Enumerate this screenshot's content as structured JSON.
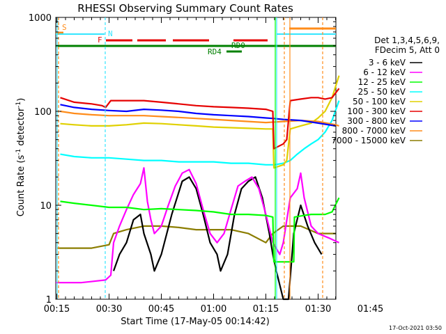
{
  "chart_data": {
    "type": "line",
    "title": "RHESSI Observing Summary Count Rates",
    "xlabel": "Start Time (17-May-05 00:14:42)",
    "ylabel": "Count Rate (s⁻¹ detector⁻¹)",
    "ylabel_parts": [
      "Count Rate (s",
      "-1",
      " detector",
      "-1",
      ")"
    ],
    "y_scale": "log",
    "ylim": [
      1,
      1000
    ],
    "xlim": [
      14.7,
      97.0
    ],
    "x_ticks": [
      {
        "t": 15,
        "label": "00:15"
      },
      {
        "t": 30,
        "label": "00:30"
      },
      {
        "t": 45,
        "label": "00:45"
      },
      {
        "t": 60,
        "label": "01:00"
      },
      {
        "t": 75,
        "label": "01:15"
      },
      {
        "t": 90,
        "label": "01:30"
      },
      {
        "t": 105,
        "label": "01:45"
      }
    ],
    "y_ticks": [
      {
        "v": 1,
        "label": "1"
      },
      {
        "v": 10,
        "label": "10"
      },
      {
        "v": 100,
        "label": "100"
      },
      {
        "v": 1000,
        "label": "1000"
      }
    ],
    "legend_header": [
      "Det 1,3,4,5,6,9,",
      "FDecim 5, Att 0"
    ],
    "legend_placement": "right",
    "timestamp": "17-Oct-2021 03:50",
    "flags": [
      {
        "label": "S",
        "color": "#ff8c1a"
      },
      {
        "label": "N",
        "color": "#33e6ff"
      },
      {
        "label": "F",
        "color": "#e60000"
      },
      {
        "label": "RD0",
        "color": "#008000"
      },
      {
        "label": "RD4",
        "color": "#008000"
      }
    ],
    "series": [
      {
        "name": "3 - 6 keV",
        "color": "#000000",
        "points": [
          [
            31.3,
            2
          ],
          [
            33,
            3
          ],
          [
            35,
            4
          ],
          [
            37,
            7
          ],
          [
            39,
            8
          ],
          [
            40,
            5
          ],
          [
            42,
            3
          ],
          [
            43,
            2
          ],
          [
            45,
            3
          ],
          [
            48,
            8
          ],
          [
            51,
            18
          ],
          [
            53,
            20
          ],
          [
            55,
            15
          ],
          [
            57,
            8
          ],
          [
            59,
            4
          ],
          [
            61,
            3
          ],
          [
            62,
            2
          ],
          [
            64,
            3
          ],
          [
            66,
            8
          ],
          [
            68,
            15
          ],
          [
            70,
            18
          ],
          [
            72,
            20
          ],
          [
            74,
            12
          ],
          [
            76,
            5
          ],
          [
            77,
            3
          ],
          [
            78,
            2
          ],
          [
            80,
            1
          ],
          [
            81.5,
            1
          ],
          [
            83,
            5
          ],
          [
            85,
            10
          ],
          [
            87,
            6
          ],
          [
            89,
            4
          ],
          [
            91,
            3
          ]
        ]
      },
      {
        "name": "6 - 12 keV",
        "color": "#ff00ff",
        "points": [
          [
            14.7,
            1.5
          ],
          [
            22,
            1.5
          ],
          [
            29,
            1.6
          ],
          [
            30.5,
            1.8
          ],
          [
            31.3,
            4
          ],
          [
            33,
            6
          ],
          [
            35,
            9
          ],
          [
            37,
            13
          ],
          [
            39,
            17
          ],
          [
            40,
            25
          ],
          [
            41,
            11
          ],
          [
            42,
            7
          ],
          [
            43,
            5
          ],
          [
            45,
            6
          ],
          [
            47,
            10
          ],
          [
            49,
            16
          ],
          [
            51,
            22
          ],
          [
            53,
            24
          ],
          [
            55,
            17
          ],
          [
            57,
            9
          ],
          [
            59,
            5
          ],
          [
            61,
            4
          ],
          [
            63,
            5
          ],
          [
            65,
            9
          ],
          [
            67,
            16
          ],
          [
            69,
            18
          ],
          [
            71,
            20
          ],
          [
            73,
            15
          ],
          [
            75,
            8
          ],
          [
            77,
            4
          ],
          [
            79,
            3
          ],
          [
            80,
            4
          ],
          [
            82,
            12
          ],
          [
            84,
            15
          ],
          [
            85,
            22
          ],
          [
            86,
            12
          ],
          [
            88,
            6
          ],
          [
            90,
            5
          ],
          [
            93,
            4.5
          ],
          [
            96,
            4
          ]
        ]
      },
      {
        "name": "12 - 25 keV",
        "color": "#00ff00",
        "points": [
          [
            16,
            11
          ],
          [
            20,
            10.5
          ],
          [
            25,
            10
          ],
          [
            30,
            9.5
          ],
          [
            35,
            9.5
          ],
          [
            40,
            9
          ],
          [
            45,
            9.2
          ],
          [
            50,
            9
          ],
          [
            55,
            8.8
          ],
          [
            60,
            8.5
          ],
          [
            65,
            8
          ],
          [
            70,
            8
          ],
          [
            75,
            7.8
          ],
          [
            77,
            7.5
          ],
          [
            77.3,
            2.5
          ],
          [
            83,
            2.5
          ],
          [
            83.2,
            7.5
          ],
          [
            86,
            7.8
          ],
          [
            88,
            8
          ],
          [
            92,
            8
          ],
          [
            94,
            8.5
          ],
          [
            96,
            12
          ]
        ]
      },
      {
        "name": "25 - 50 keV",
        "color": "#00ffff",
        "points": [
          [
            16,
            35
          ],
          [
            20,
            33
          ],
          [
            25,
            32
          ],
          [
            30,
            32
          ],
          [
            35,
            31
          ],
          [
            40,
            30
          ],
          [
            45,
            30
          ],
          [
            50,
            29
          ],
          [
            55,
            29
          ],
          [
            60,
            29
          ],
          [
            65,
            28
          ],
          [
            70,
            28
          ],
          [
            75,
            27
          ],
          [
            77,
            27
          ],
          [
            77.5,
            27
          ],
          [
            80,
            28
          ],
          [
            82,
            30
          ],
          [
            84,
            35
          ],
          [
            86,
            40
          ],
          [
            88,
            45
          ],
          [
            90,
            50
          ],
          [
            92,
            60
          ],
          [
            94,
            80
          ],
          [
            96,
            130
          ]
        ]
      },
      {
        "name": "50 - 100 keV",
        "color": "#e0d000",
        "points": [
          [
            16,
            74
          ],
          [
            20,
            72
          ],
          [
            25,
            70
          ],
          [
            30,
            70
          ],
          [
            35,
            72
          ],
          [
            40,
            75
          ],
          [
            45,
            74
          ],
          [
            50,
            72
          ],
          [
            55,
            70
          ],
          [
            60,
            68
          ],
          [
            65,
            67
          ],
          [
            70,
            66
          ],
          [
            75,
            65
          ],
          [
            77,
            65
          ],
          [
            77.3,
            25
          ],
          [
            80,
            27
          ],
          [
            81,
            30
          ],
          [
            82,
            65
          ],
          [
            85,
            70
          ],
          [
            88,
            75
          ],
          [
            90,
            85
          ],
          [
            92,
            100
          ],
          [
            94,
            140
          ],
          [
            96,
            240
          ]
        ]
      },
      {
        "name": "100 - 300 keV",
        "color": "#e60000",
        "points": [
          [
            16,
            140
          ],
          [
            20,
            125
          ],
          [
            25,
            120
          ],
          [
            28,
            115
          ],
          [
            29,
            110
          ],
          [
            30.5,
            130
          ],
          [
            35,
            130
          ],
          [
            40,
            130
          ],
          [
            45,
            125
          ],
          [
            50,
            120
          ],
          [
            55,
            115
          ],
          [
            60,
            112
          ],
          [
            65,
            110
          ],
          [
            70,
            108
          ],
          [
            75,
            105
          ],
          [
            77,
            100
          ],
          [
            77.3,
            40
          ],
          [
            80,
            45
          ],
          [
            81,
            50
          ],
          [
            82,
            130
          ],
          [
            85,
            135
          ],
          [
            88,
            140
          ],
          [
            90,
            140
          ],
          [
            92,
            135
          ],
          [
            94,
            140
          ],
          [
            96,
            175
          ]
        ]
      },
      {
        "name": "300 - 800 keV",
        "color": "#0000ff",
        "points": [
          [
            16,
            118
          ],
          [
            20,
            110
          ],
          [
            25,
            105
          ],
          [
            30,
            102
          ],
          [
            35,
            100
          ],
          [
            40,
            105
          ],
          [
            45,
            103
          ],
          [
            50,
            100
          ],
          [
            55,
            95
          ],
          [
            60,
            92
          ],
          [
            65,
            90
          ],
          [
            70,
            88
          ],
          [
            75,
            85
          ],
          [
            77,
            84
          ],
          [
            80,
            82
          ],
          [
            85,
            80
          ],
          [
            90,
            75
          ],
          [
            95,
            70
          ]
        ]
      },
      {
        "name": "800 - 7000 keV",
        "color": "#ff8c1a",
        "points": [
          [
            16,
            100
          ],
          [
            20,
            95
          ],
          [
            25,
            92
          ],
          [
            30,
            90
          ],
          [
            35,
            90
          ],
          [
            40,
            90
          ],
          [
            45,
            88
          ],
          [
            50,
            86
          ],
          [
            55,
            84
          ],
          [
            60,
            82
          ],
          [
            65,
            80
          ],
          [
            70,
            78
          ],
          [
            75,
            76
          ],
          [
            80,
            78
          ],
          [
            85,
            80
          ],
          [
            90,
            78
          ],
          [
            95,
            72
          ],
          [
            96,
            70
          ]
        ]
      },
      {
        "name": "7000 - 15000 keV",
        "color": "#8b7d00",
        "points": [
          [
            15,
            3.5
          ],
          [
            20,
            3.5
          ],
          [
            25,
            3.5
          ],
          [
            30,
            3.8
          ],
          [
            31.3,
            5
          ],
          [
            35,
            5.5
          ],
          [
            40,
            6
          ],
          [
            45,
            6
          ],
          [
            50,
            5.8
          ],
          [
            55,
            5.5
          ],
          [
            60,
            5.5
          ],
          [
            65,
            5.5
          ],
          [
            70,
            5
          ],
          [
            75,
            4
          ],
          [
            77,
            5
          ],
          [
            80,
            6
          ],
          [
            85,
            6
          ],
          [
            90,
            5
          ],
          [
            95,
            5
          ]
        ]
      }
    ]
  }
}
